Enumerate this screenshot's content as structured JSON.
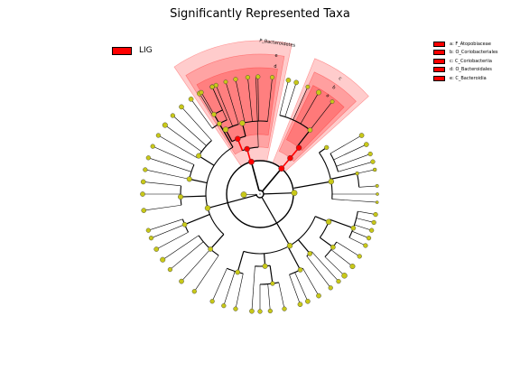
{
  "title": "Significantly Represented Taxa",
  "group_legend": [
    {
      "label": "LIG",
      "color": "#ff0000"
    }
  ],
  "taxa_legend": [
    {
      "label": "a: F_Atopobiaceae",
      "color": "#ff0000"
    },
    {
      "label": "b: O_Coriobacteriales",
      "color": "#ff0000"
    },
    {
      "label": "c: C_Coriobacteriia",
      "color": "#ff0000"
    },
    {
      "label": "d: O_Bacteroidales",
      "color": "#ff0000"
    },
    {
      "label": "e: C_Bacteroidia",
      "color": "#ff0000"
    }
  ],
  "highlight_labels": {
    "phylum": "P_Bacteroidetes",
    "e": "e",
    "d": "d",
    "c": "c",
    "b": "b",
    "a": "a"
  },
  "colors": {
    "node_fill": "#c8c819",
    "enriched_node": "#ff0000",
    "shade": "#ff0000",
    "branch": "#000000"
  }
}
